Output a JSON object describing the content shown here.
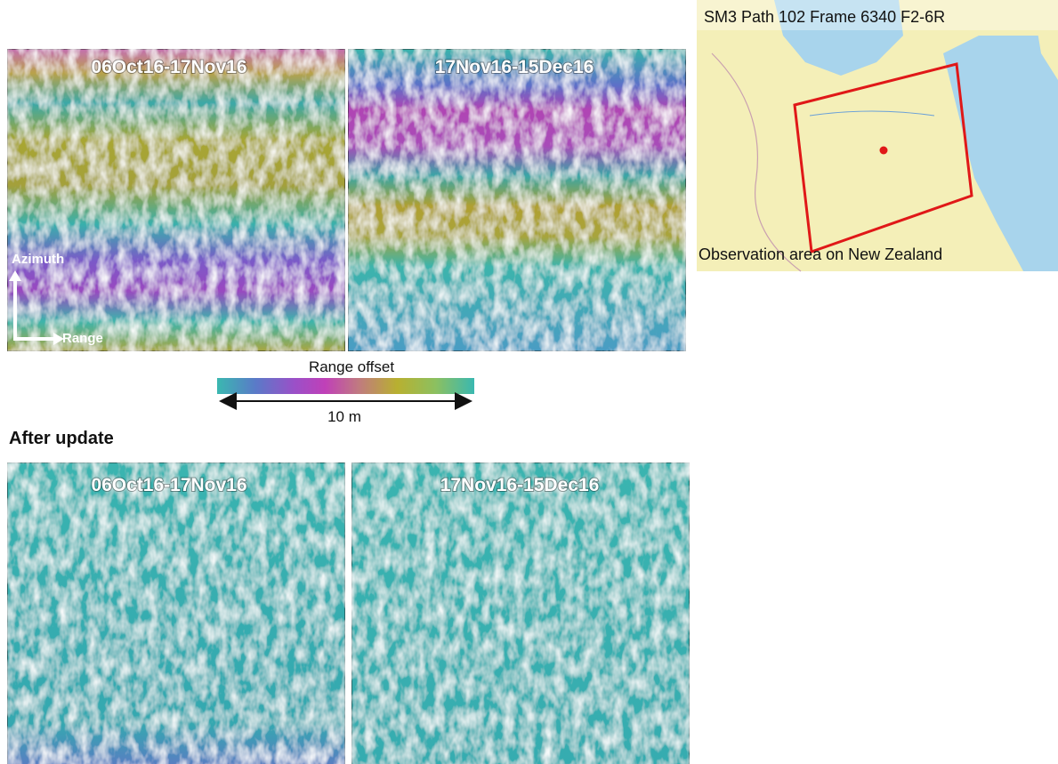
{
  "before": {
    "panels": [
      {
        "label": "06Oct16-17Nov16"
      },
      {
        "label": "17Nov16-15Dec16"
      }
    ]
  },
  "axes": {
    "azimuth": "Azimuth",
    "range": "Range"
  },
  "colorbar": {
    "title": "Range offset",
    "scale": "10 m"
  },
  "after": {
    "heading": "After update",
    "panels": [
      {
        "label": "06Oct16-17Nov16"
      },
      {
        "label": "17Nov16-15Dec16"
      }
    ]
  },
  "map": {
    "title": "SM3 Path 102 Frame 6340 F2-6R",
    "caption": "Observation area on New Zealand"
  }
}
